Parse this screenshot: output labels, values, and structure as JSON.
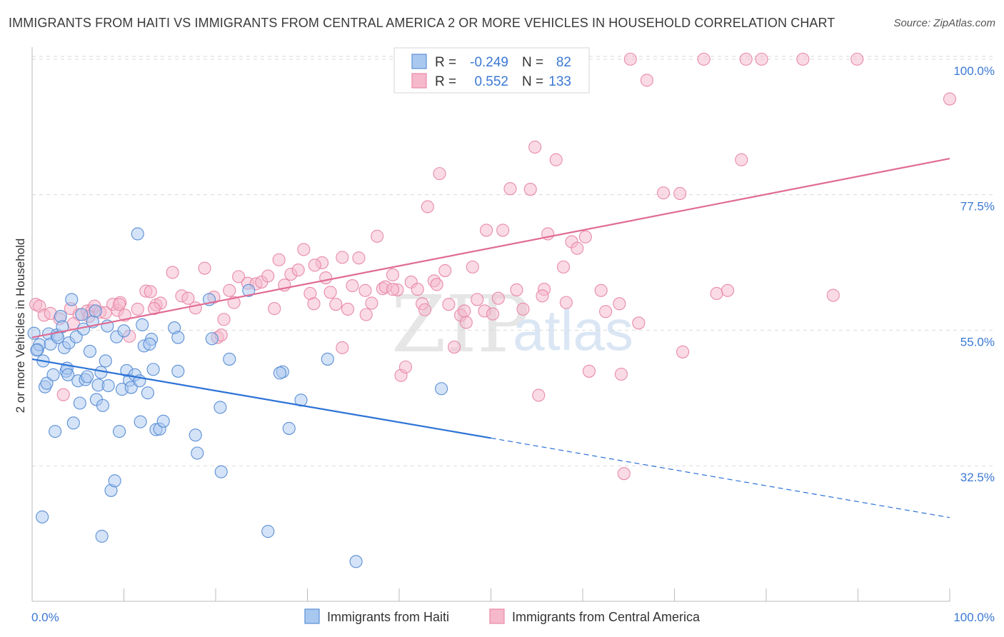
{
  "title": "IMMIGRANTS FROM HAITI VS IMMIGRANTS FROM CENTRAL AMERICA 2 OR MORE VEHICLES IN HOUSEHOLD CORRELATION CHART",
  "source": "Source: ZipAtlas.com",
  "watermark": {
    "zip": "ZIP",
    "atlas": "atlas"
  },
  "colors": {
    "haiti_fill": "#a9c8f0",
    "haiti_stroke": "#5b8fd6",
    "haiti_line": "#2b72d6",
    "ca_fill": "#f6b8cb",
    "ca_stroke": "#e88aa8",
    "ca_line": "#e06b94",
    "tick_text": "#3b78d4",
    "grid": "#d9d9d9"
  },
  "legend": {
    "rows": [
      {
        "r_label": "R =",
        "r_value": "-0.249",
        "n_label": "N =",
        "n_value": "82"
      },
      {
        "r_label": "R =",
        "r_value": "0.552",
        "n_label": "N =",
        "n_value": "133"
      }
    ]
  },
  "chart_data": {
    "type": "scatter",
    "ylabel": "2 or more Vehicles in Household",
    "xlim": [
      0,
      100
    ],
    "ylim": [
      10,
      102
    ],
    "y_ticks": [
      {
        "value": 32.5,
        "label": "32.5%"
      },
      {
        "value": 55.0,
        "label": "55.0%"
      },
      {
        "value": 77.5,
        "label": "77.5%"
      },
      {
        "value": 100.0,
        "label": "100.0%"
      }
    ],
    "x_tick_labels": {
      "left": "0.0%",
      "right": "100.0%"
    },
    "series": [
      {
        "name": "Immigrants from Haiti",
        "trend": {
          "x0": 0,
          "y0": 50.2,
          "x1": 50,
          "y1": 37.1,
          "dash_x1": 100,
          "dash_y1": 23.9
        },
        "points": [
          [
            0.2,
            54.5
          ],
          [
            0.6,
            51.8
          ],
          [
            0.8,
            52.6
          ],
          [
            1.2,
            49.9
          ],
          [
            1.4,
            45.6
          ],
          [
            1.6,
            46.2
          ],
          [
            1.8,
            54.4
          ],
          [
            2.0,
            52.7
          ],
          [
            2.3,
            47.6
          ],
          [
            2.5,
            38.2
          ],
          [
            2.7,
            54.2
          ],
          [
            2.8,
            53.8
          ],
          [
            3.1,
            57.3
          ],
          [
            3.3,
            55.6
          ],
          [
            3.5,
            52.1
          ],
          [
            3.7,
            48.2
          ],
          [
            3.8,
            48.7
          ],
          [
            4.0,
            52.9
          ],
          [
            4.3,
            60.1
          ],
          [
            4.5,
            39.6
          ],
          [
            4.8,
            53.9
          ],
          [
            5.0,
            46.6
          ],
          [
            5.2,
            42.9
          ],
          [
            5.4,
            57.6
          ],
          [
            5.6,
            55.2
          ],
          [
            5.8,
            46.8
          ],
          [
            6.0,
            47.3
          ],
          [
            6.3,
            51.5
          ],
          [
            6.6,
            56.4
          ],
          [
            7.0,
            43.5
          ],
          [
            7.2,
            45.9
          ],
          [
            7.5,
            48.0
          ],
          [
            7.7,
            42.5
          ],
          [
            8.0,
            49.9
          ],
          [
            8.2,
            55.7
          ],
          [
            8.3,
            45.8
          ],
          [
            8.6,
            28.4
          ],
          [
            9.0,
            30.0
          ],
          [
            9.2,
            53.9
          ],
          [
            9.5,
            38.2
          ],
          [
            9.8,
            45.2
          ],
          [
            10.0,
            54.9
          ],
          [
            10.3,
            48.3
          ],
          [
            10.6,
            46.7
          ],
          [
            10.8,
            45.5
          ],
          [
            11.2,
            47.6
          ],
          [
            11.5,
            71.0
          ],
          [
            11.8,
            39.8
          ],
          [
            12.0,
            55.9
          ],
          [
            12.2,
            52.4
          ],
          [
            12.6,
            44.6
          ],
          [
            13.0,
            53.5
          ],
          [
            13.2,
            48.5
          ],
          [
            13.5,
            38.5
          ],
          [
            13.9,
            38.6
          ],
          [
            14.3,
            39.9
          ],
          [
            15.9,
            48.2
          ],
          [
            15.5,
            55.4
          ],
          [
            15.9,
            53.8
          ],
          [
            17.8,
            37.6
          ],
          [
            18.0,
            34.6
          ],
          [
            19.3,
            60.1
          ],
          [
            19.6,
            53.6
          ],
          [
            20.5,
            42.2
          ],
          [
            20.6,
            31.5
          ],
          [
            21.5,
            50.2
          ],
          [
            23.6,
            61.6
          ],
          [
            25.7,
            21.6
          ],
          [
            27.3,
            48.1
          ],
          [
            27.0,
            47.9
          ],
          [
            28.0,
            38.7
          ],
          [
            29.3,
            43.4
          ],
          [
            32.2,
            50.2
          ],
          [
            35.3,
            16.6
          ],
          [
            44.6,
            45.3
          ],
          [
            0.5,
            51.7
          ],
          [
            3.9,
            47.6
          ],
          [
            6.9,
            58.2
          ],
          [
            12.8,
            52.7
          ],
          [
            1.1,
            24.0
          ],
          [
            7.6,
            20.8
          ],
          [
            11.7,
            46.6
          ]
        ]
      },
      {
        "name": "Immigrants from Central America",
        "trend": {
          "x0": 0,
          "y0": 53.8,
          "x1": 100,
          "y1": 83.5
        },
        "points": [
          [
            0.4,
            59.3
          ],
          [
            0.8,
            59.0
          ],
          [
            1.3,
            57.5
          ],
          [
            2.0,
            57.8
          ],
          [
            3.0,
            56.9
          ],
          [
            3.4,
            44.3
          ],
          [
            4.2,
            58.6
          ],
          [
            5.1,
            57.6
          ],
          [
            6.0,
            58.2
          ],
          [
            6.5,
            58.3
          ],
          [
            6.8,
            59.0
          ],
          [
            7.4,
            58.0
          ],
          [
            8.0,
            57.9
          ],
          [
            8.8,
            59.3
          ],
          [
            9.3,
            58.3
          ],
          [
            9.6,
            59.6
          ],
          [
            10.1,
            57.5
          ],
          [
            10.6,
            54.0
          ],
          [
            11.5,
            58.5
          ],
          [
            12.4,
            61.5
          ],
          [
            12.9,
            61.4
          ],
          [
            13.5,
            59.2
          ],
          [
            14.0,
            59.5
          ],
          [
            15.3,
            64.6
          ],
          [
            16.3,
            60.7
          ],
          [
            17.0,
            60.3
          ],
          [
            17.8,
            58.7
          ],
          [
            18.8,
            65.3
          ],
          [
            19.8,
            60.5
          ],
          [
            20.2,
            53.8
          ],
          [
            20.6,
            54.2
          ],
          [
            21.5,
            61.6
          ],
          [
            22.0,
            59.6
          ],
          [
            22.5,
            63.9
          ],
          [
            23.5,
            62.8
          ],
          [
            24.4,
            62.7
          ],
          [
            25.0,
            63.0
          ],
          [
            25.7,
            64.0
          ],
          [
            26.4,
            58.6
          ],
          [
            26.9,
            66.7
          ],
          [
            27.5,
            62.5
          ],
          [
            28.2,
            64.3
          ],
          [
            29.0,
            65.0
          ],
          [
            29.6,
            68.4
          ],
          [
            30.3,
            61.1
          ],
          [
            30.7,
            59.4
          ],
          [
            31.6,
            66.2
          ],
          [
            32.0,
            63.7
          ],
          [
            32.5,
            61.3
          ],
          [
            33.1,
            59.3
          ],
          [
            33.8,
            67.1
          ],
          [
            34.4,
            58.5
          ],
          [
            34.9,
            62.4
          ],
          [
            35.6,
            67.0
          ],
          [
            36.3,
            61.6
          ],
          [
            37.0,
            59.5
          ],
          [
            37.6,
            70.6
          ],
          [
            38.2,
            61.9
          ],
          [
            38.5,
            62.2
          ],
          [
            39.3,
            64.2
          ],
          [
            39.8,
            61.7
          ],
          [
            40.2,
            47.5
          ],
          [
            40.7,
            48.9
          ],
          [
            41.3,
            63.0
          ],
          [
            42.0,
            61.8
          ],
          [
            42.5,
            59.4
          ],
          [
            43.1,
            75.5
          ],
          [
            43.8,
            63.2
          ],
          [
            44.4,
            81.0
          ],
          [
            45.0,
            64.9
          ],
          [
            45.4,
            59.3
          ],
          [
            46.0,
            52.2
          ],
          [
            46.7,
            57.5
          ],
          [
            47.3,
            56.3
          ],
          [
            48.0,
            65.5
          ],
          [
            48.5,
            60.1
          ],
          [
            49.5,
            71.6
          ],
          [
            49.3,
            58.2
          ],
          [
            50.2,
            57.7
          ],
          [
            50.8,
            60.3
          ],
          [
            51.3,
            71.6
          ],
          [
            52.1,
            78.5
          ],
          [
            52.8,
            61.7
          ],
          [
            53.5,
            58.5
          ],
          [
            54.3,
            78.4
          ],
          [
            54.8,
            85.4
          ],
          [
            55.2,
            44.2
          ],
          [
            55.8,
            61.8
          ],
          [
            56.2,
            71.0
          ],
          [
            57.1,
            83.3
          ],
          [
            57.9,
            65.5
          ],
          [
            58.2,
            59.6
          ],
          [
            58.8,
            69.7
          ],
          [
            59.4,
            68.6
          ],
          [
            60.3,
            70.5
          ],
          [
            60.7,
            48.2
          ],
          [
            62.0,
            61.6
          ],
          [
            62.5,
            58.1
          ],
          [
            64.2,
            47.7
          ],
          [
            64.5,
            31.2
          ],
          [
            65.2,
            100.0
          ],
          [
            67.0,
            96.5
          ],
          [
            68.8,
            77.8
          ],
          [
            70.6,
            77.7
          ],
          [
            70.9,
            51.4
          ],
          [
            73.2,
            100.0
          ],
          [
            74.6,
            61.1
          ],
          [
            75.8,
            61.6
          ],
          [
            77.3,
            83.3
          ],
          [
            77.8,
            100.0
          ],
          [
            79.5,
            100.0
          ],
          [
            84.0,
            100.0
          ],
          [
            87.3,
            60.8
          ],
          [
            89.9,
            100.0
          ],
          [
            100.0,
            93.4
          ],
          [
            56.8,
            100.0
          ],
          [
            59.5,
            100.0
          ],
          [
            39.3,
            61.8
          ],
          [
            36.4,
            57.6
          ],
          [
            20.9,
            56.8
          ],
          [
            13.3,
            58.6
          ],
          [
            6.2,
            57.3
          ],
          [
            4.5,
            56.1
          ],
          [
            30.8,
            65.8
          ],
          [
            42.8,
            58.4
          ],
          [
            64.0,
            59.4
          ],
          [
            66.1,
            56.2
          ],
          [
            47.1,
            58.2
          ],
          [
            44.1,
            62.6
          ],
          [
            33.8,
            52.1
          ],
          [
            9.5,
            59.3
          ],
          [
            55.6,
            60.7
          ]
        ]
      }
    ]
  },
  "bottom_legend": {
    "haiti": "Immigrants from Haiti",
    "ca": "Immigrants from Central America"
  }
}
